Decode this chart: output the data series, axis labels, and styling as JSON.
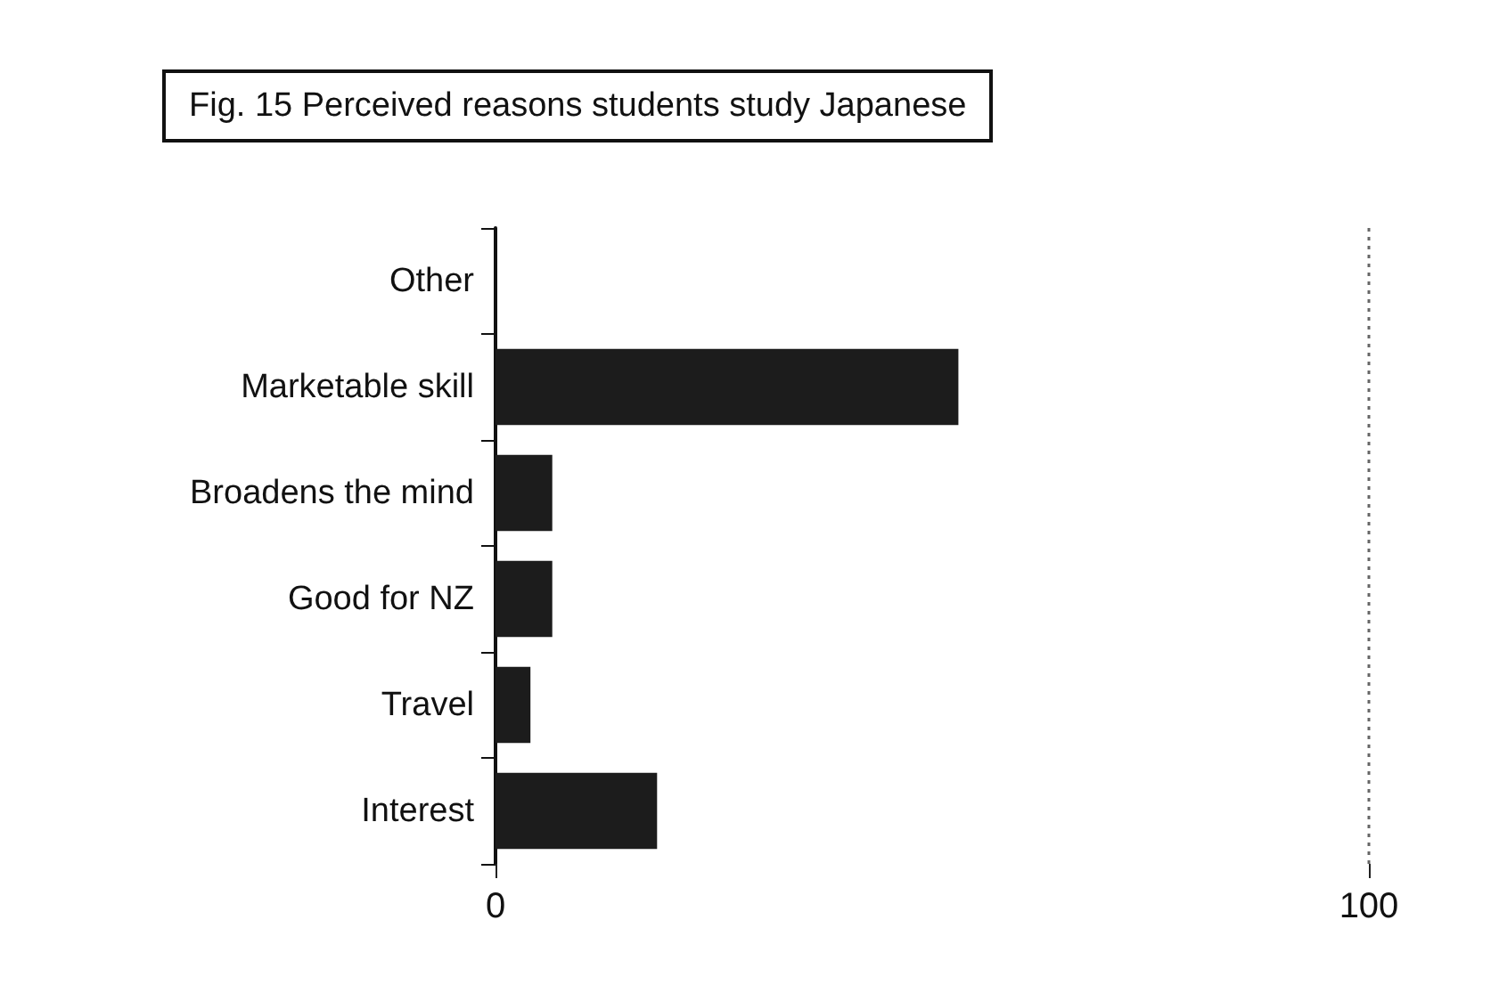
{
  "chart_data": {
    "type": "bar",
    "orientation": "horizontal",
    "title": "Fig. 15 Perceived reasons students study Japanese",
    "categories": [
      "Other",
      "Marketable skill",
      "Broadens the mind",
      "Good for NZ",
      "Travel",
      "Interest"
    ],
    "values": [
      0,
      53,
      6.5,
      6.5,
      4,
      18.5
    ],
    "color": "#1c1c1c",
    "xlim": [
      0,
      100
    ],
    "xticks": [
      0,
      100
    ],
    "ref_lines": [
      {
        "axis": "x",
        "value": 100,
        "color": "#666666",
        "line_style": "dotted"
      }
    ]
  }
}
